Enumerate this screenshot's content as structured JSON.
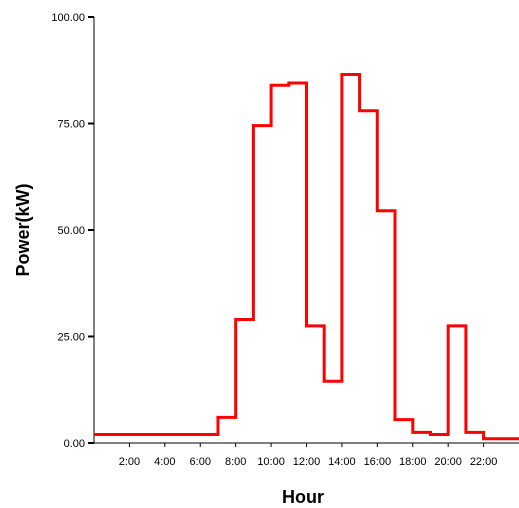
{
  "chart_data": {
    "type": "line",
    "step": true,
    "title": "",
    "xlabel": "Hour",
    "ylabel": "Power(kW)",
    "xlim": [
      0,
      24
    ],
    "ylim": [
      0,
      100
    ],
    "x_ticks": [
      2,
      4,
      6,
      8,
      10,
      12,
      14,
      16,
      18,
      20,
      22
    ],
    "x_tick_labels": [
      "2:00",
      "4:00",
      "6:00",
      "8:00",
      "10:00",
      "12:00",
      "14:00",
      "16:00",
      "18:00",
      "20:00",
      "22:00"
    ],
    "y_ticks": [
      0,
      25,
      50,
      75,
      100
    ],
    "y_tick_labels": [
      "0.00",
      "25.00",
      "50.00",
      "75.00",
      "100.00"
    ],
    "grid": false,
    "series": [
      {
        "color": "#ff0000",
        "x": [
          0,
          1,
          2,
          3,
          4,
          5,
          6,
          7,
          8,
          9,
          10,
          11,
          12,
          13,
          14,
          15,
          16,
          17,
          18,
          19,
          20,
          21,
          22,
          23
        ],
        "values": [
          2,
          2,
          2,
          2,
          2,
          2,
          2,
          6,
          29,
          74.5,
          84,
          84.5,
          27.5,
          14.5,
          86.5,
          78,
          54.5,
          5.5,
          2.5,
          2,
          27.5,
          2.5,
          1,
          1
        ]
      }
    ]
  }
}
